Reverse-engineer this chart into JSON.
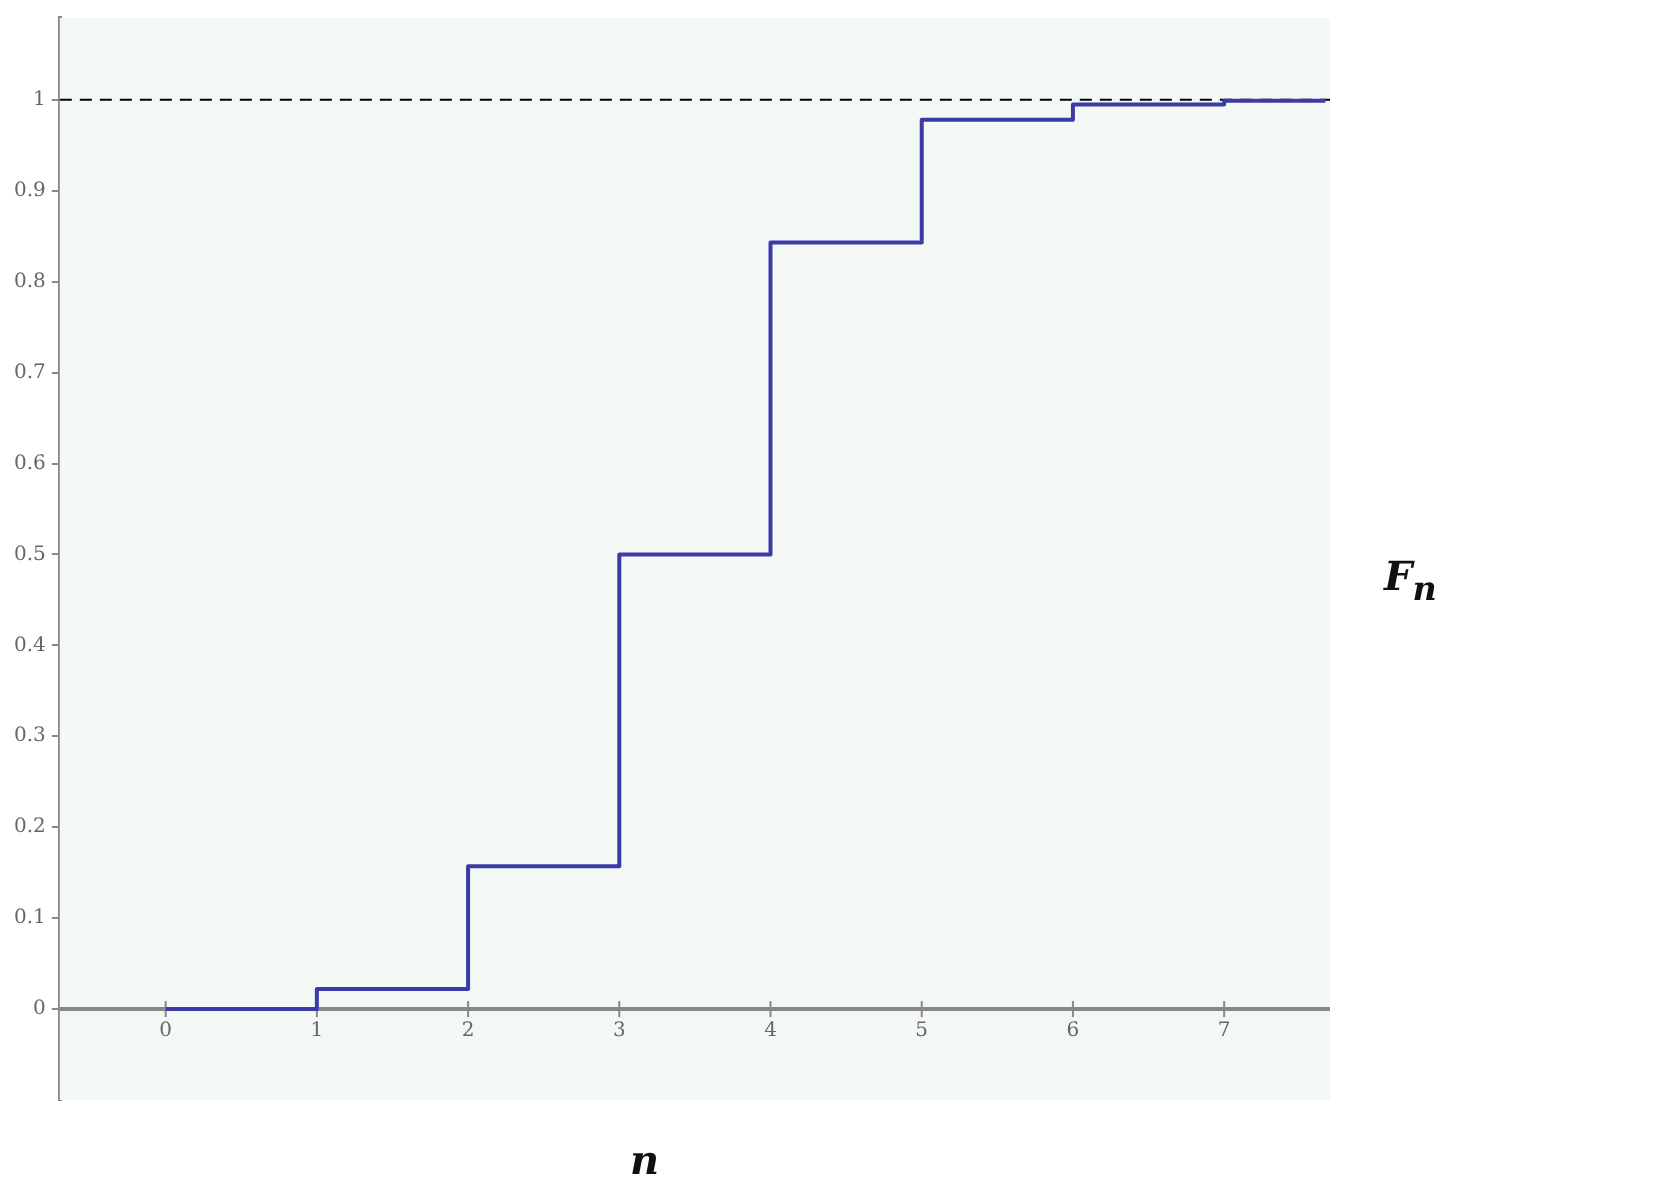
{
  "chart_data": {
    "type": "step",
    "xlabel": "n",
    "ylabel": "F$_{n}$",
    "x": [
      0,
      1,
      2,
      3,
      4,
      5,
      6,
      7,
      7.67
    ],
    "series": [
      {
        "color": "#3a3aa8",
        "values": [
          0,
          0.022,
          0.157,
          0.5,
          0.843,
          0.978,
          0.995,
          0.999,
          0.999
        ]
      }
    ],
    "xlim": [
      -0.7,
      7.7
    ],
    "ylim": [
      -0.1,
      1.09
    ],
    "xticks": [
      0,
      1,
      2,
      3,
      4,
      5,
      6,
      7
    ],
    "yticks": [
      0,
      0.1,
      0.2,
      0.3,
      0.4,
      0.5,
      0.6,
      0.7,
      0.8,
      0.9,
      1
    ],
    "ref_lines": [
      {
        "axis": "y",
        "value": 1,
        "color": "#000000",
        "line_style": "dashed"
      }
    ],
    "grid": false,
    "legend": false,
    "line_style": "solid",
    "marker": "none"
  }
}
